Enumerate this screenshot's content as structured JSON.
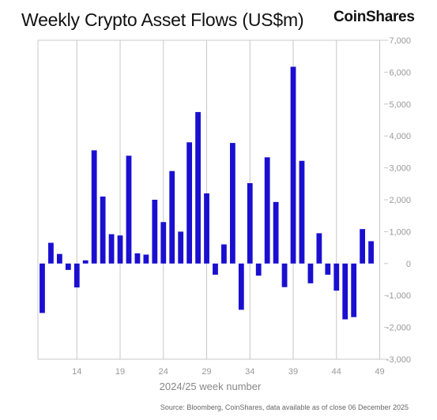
{
  "header": {
    "title": "Weekly Crypto Asset Flows (US$m)",
    "brand": "CoinShares"
  },
  "footer": {
    "source": "Source: Bloomberg, CoinShares, data available as of close 06 December 2025"
  },
  "colors": {
    "bar": "#1a0fd0",
    "grid": "#c8c8c8",
    "axis_text": "#999999"
  },
  "chart_data": {
    "type": "bar",
    "xlabel": "2024/25 week number",
    "ylabel": "",
    "ylim": [
      -3000,
      7000
    ],
    "yticks": [
      7000,
      6000,
      5000,
      4000,
      3000,
      2000,
      1000,
      0,
      -1000,
      -2000,
      -3000
    ],
    "ytick_labels": [
      "7,000",
      "6,000",
      "5,000",
      "4,000",
      "3,000",
      "2,000",
      "1,000",
      "0",
      "-1,000",
      "-2,000",
      "-3,000"
    ],
    "xtick_labels": [
      {
        "week": 14,
        "label": "14"
      },
      {
        "week": 19,
        "label": "19"
      },
      {
        "week": 24,
        "label": "24"
      },
      {
        "week": 29,
        "label": "29"
      },
      {
        "week": 34,
        "label": "34"
      },
      {
        "week": 39,
        "label": "39"
      },
      {
        "week": 44,
        "label": "44"
      },
      {
        "week": 49,
        "label": "49"
      }
    ],
    "grid": "vertical",
    "weeks": [
      10,
      11,
      12,
      13,
      14,
      15,
      16,
      17,
      18,
      19,
      20,
      21,
      22,
      23,
      24,
      25,
      26,
      27,
      28,
      29,
      30,
      31,
      32,
      33,
      34,
      35,
      36,
      37,
      38,
      39,
      40,
      41,
      42,
      43,
      44,
      45,
      46,
      47,
      48,
      49
    ],
    "values": [
      -1550,
      650,
      300,
      -200,
      -750,
      100,
      3550,
      2100,
      920,
      880,
      3380,
      320,
      280,
      2000,
      1300,
      2900,
      1000,
      3800,
      4750,
      2200,
      -350,
      600,
      3780,
      -1450,
      2520,
      -380,
      3330,
      1930,
      -740,
      6170,
      3220,
      -620,
      950,
      -350,
      -850,
      -1750,
      -1680,
      1080,
      700,
      0
    ]
  }
}
